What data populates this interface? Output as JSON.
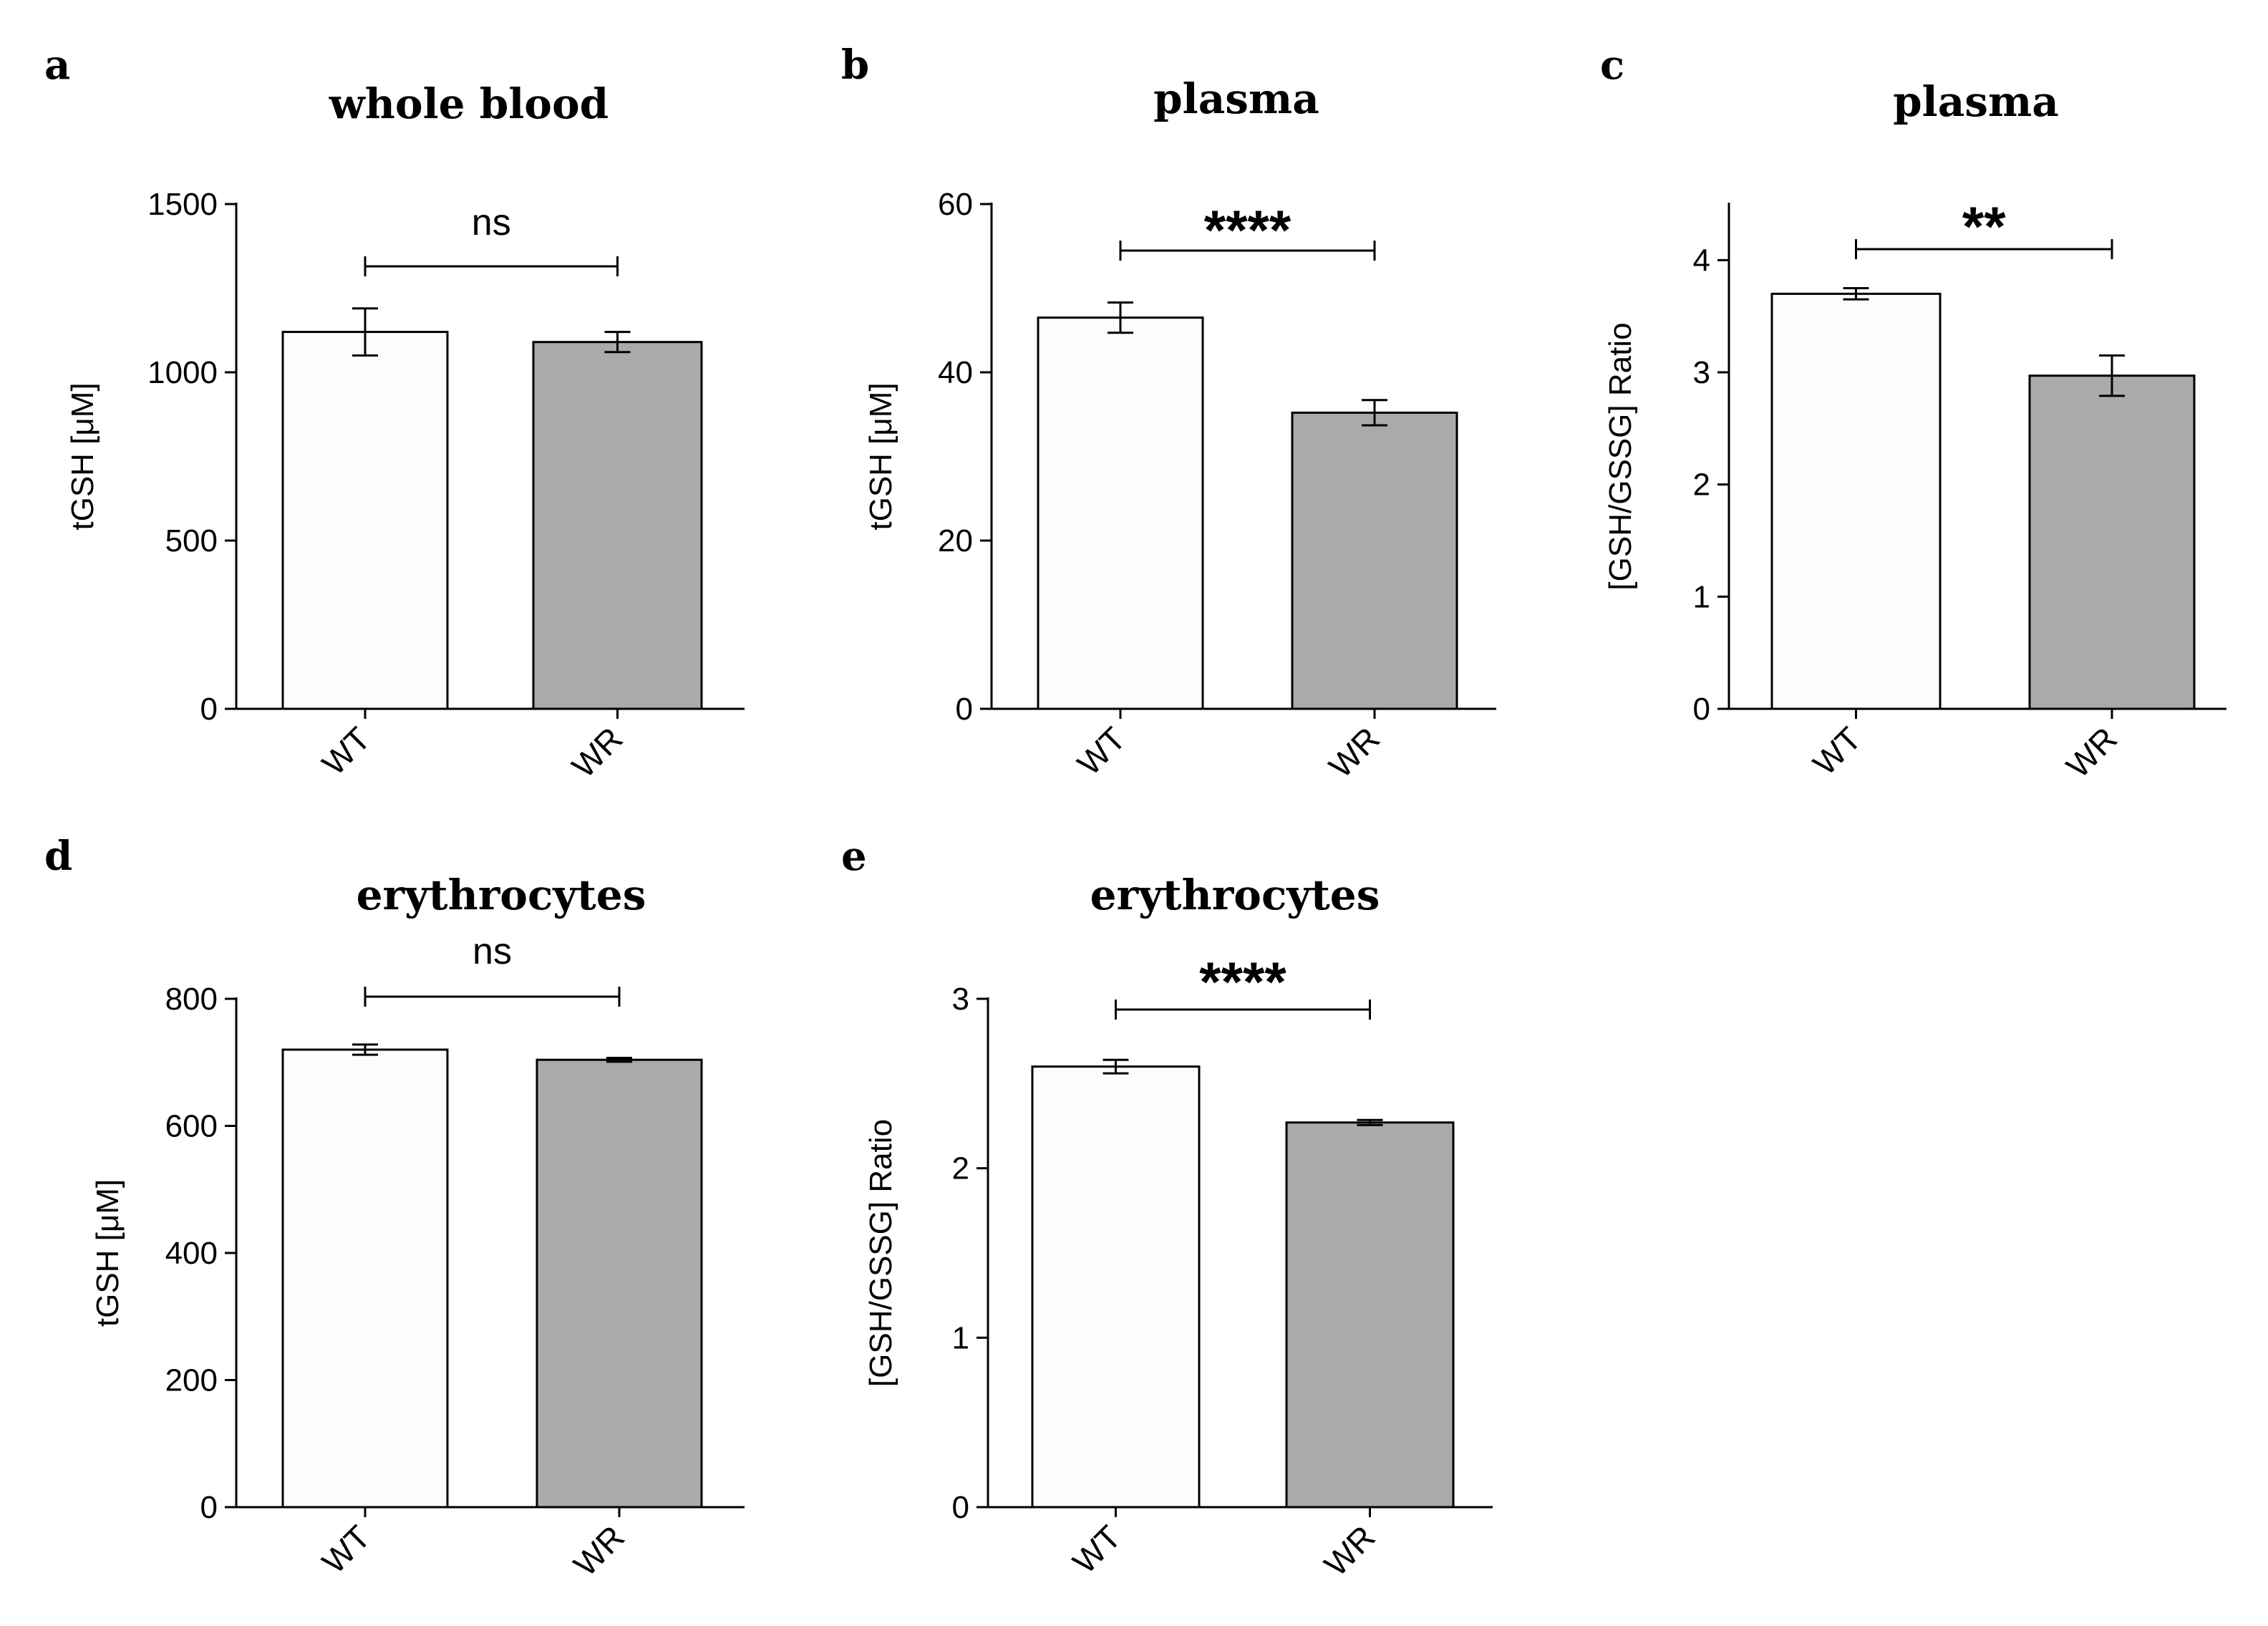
{
  "figure": {
    "colors": {
      "WT": "#fcfcfc",
      "WR": "#aaaaaa",
      "axis": "#000000"
    }
  },
  "chart_data": [
    {
      "type": "bar",
      "panel": "a",
      "title": "whole blood",
      "ylabel": "tGSH [μM]",
      "categories": [
        "WT",
        "WR"
      ],
      "values": [
        1120,
        1090
      ],
      "errors": [
        70,
        30
      ],
      "ylim": [
        0,
        1500
      ],
      "yticks": [
        0,
        500,
        1000,
        1500
      ],
      "significance": "ns"
    },
    {
      "type": "bar",
      "panel": "b",
      "title": "plasma",
      "ylabel": "tGSH [μM]",
      "categories": [
        "WT",
        "WR"
      ],
      "values": [
        46.5,
        35.2
      ],
      "errors": [
        1.8,
        1.5
      ],
      "ylim": [
        0,
        60
      ],
      "yticks": [
        0,
        20,
        40,
        60
      ],
      "significance": "****"
    },
    {
      "type": "bar",
      "panel": "c",
      "title": "plasma",
      "ylabel": "[GSH/GSSG] Ratio",
      "categories": [
        "WT",
        "WR"
      ],
      "values": [
        3.7,
        2.97
      ],
      "errors": [
        0.05,
        0.18
      ],
      "ylim": [
        0,
        4.5
      ],
      "yticks": [
        0,
        1,
        2,
        3,
        4
      ],
      "significance": "**"
    },
    {
      "type": "bar",
      "panel": "d",
      "title": "erythrocytes",
      "ylabel": "tGSH [μM]",
      "categories": [
        "WT",
        "WR"
      ],
      "values": [
        720,
        704
      ],
      "errors": [
        8,
        3
      ],
      "ylim": [
        0,
        800
      ],
      "yticks": [
        0,
        200,
        400,
        600,
        800
      ],
      "significance": "ns"
    },
    {
      "type": "bar",
      "panel": "e",
      "title": "erythrocytes",
      "ylabel": "[GSH/GSSG] Ratio",
      "categories": [
        "WT",
        "WR"
      ],
      "values": [
        2.6,
        2.27
      ],
      "errors": [
        0.04,
        0.015
      ],
      "ylim": [
        0,
        3
      ],
      "yticks": [
        0,
        1,
        2,
        3
      ],
      "significance": "****"
    }
  ]
}
